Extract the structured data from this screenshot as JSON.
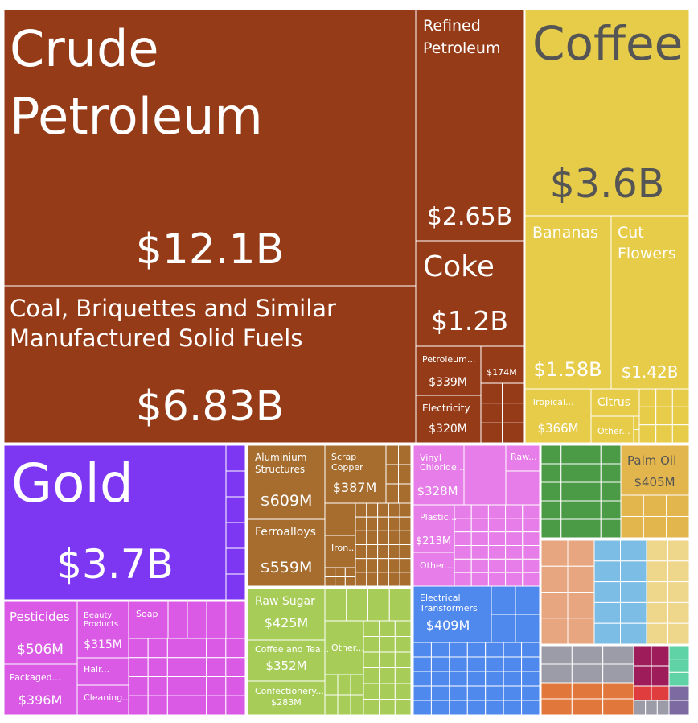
{
  "chart_data": {
    "type": "treemap",
    "colors": {
      "mineral": "#963b18",
      "vegetable": "#e7cc4a",
      "gold": "#7d37f2",
      "chemicals": "#da5ae5",
      "metals": "#a66d2f",
      "foodstuffs": "#a7cc58",
      "plastics": "#e77de9",
      "machines": "#5089ee",
      "animal": "#4b9a46",
      "animal_veg_byproducts": "#e3b54d",
      "paper": "#e7a680",
      "wood": "#7cbde6",
      "textiles": "#eed68a",
      "stone": "#9b9ca7",
      "transport": "#e1773b",
      "instruments": "#9e1c5a",
      "misc": "#5fd2a6",
      "weapons": "#e03e3e",
      "mechanical": "#7c6aa1"
    },
    "items": [
      {
        "name": "Crude Petroleum",
        "value_label": "$12.1B",
        "value_usd_bn": 12.1
      },
      {
        "name": "Coal, Briquettes and Similar Manufactured Solid Fuels",
        "value_label": "$6.83B",
        "value_usd_bn": 6.83
      },
      {
        "name": "Refined Petroleum",
        "value_label": "$2.65B",
        "value_usd_bn": 2.65
      },
      {
        "name": "Coke",
        "value_label": "$1.2B",
        "value_usd_bn": 1.2
      },
      {
        "name": "Petroleum...",
        "value_label": "$339M",
        "value_usd_bn": 0.339
      },
      {
        "name": "",
        "value_label": "$174M",
        "value_usd_bn": 0.174
      },
      {
        "name": "Electricity",
        "value_label": "$320M",
        "value_usd_bn": 0.32
      },
      {
        "name": "Coffee",
        "value_label": "$3.6B",
        "value_usd_bn": 3.6
      },
      {
        "name": "Bananas",
        "value_label": "$1.58B",
        "value_usd_bn": 1.58
      },
      {
        "name": "Cut Flowers",
        "value_label": "$1.42B",
        "value_usd_bn": 1.42
      },
      {
        "name": "Tropical...",
        "value_label": "$366M",
        "value_usd_bn": 0.366
      },
      {
        "name": "Citrus",
        "value_label": "",
        "value_usd_bn": null
      },
      {
        "name": "Other...",
        "value_label": "",
        "value_usd_bn": null
      },
      {
        "name": "Gold",
        "value_label": "$3.7B",
        "value_usd_bn": 3.7
      },
      {
        "name": "Pesticides",
        "value_label": "$506M",
        "value_usd_bn": 0.506
      },
      {
        "name": "Beauty Products",
        "value_label": "$315M",
        "value_usd_bn": 0.315
      },
      {
        "name": "Soap",
        "value_label": "",
        "value_usd_bn": null
      },
      {
        "name": "Hair...",
        "value_label": "",
        "value_usd_bn": null
      },
      {
        "name": "Packaged...",
        "value_label": "$396M",
        "value_usd_bn": 0.396
      },
      {
        "name": "Cleaning...",
        "value_label": "",
        "value_usd_bn": null
      },
      {
        "name": "Aluminium Structures",
        "value_label": "$609M",
        "value_usd_bn": 0.609
      },
      {
        "name": "Scrap Copper",
        "value_label": "$387M",
        "value_usd_bn": 0.387
      },
      {
        "name": "Ferroalloys",
        "value_label": "$559M",
        "value_usd_bn": 0.559
      },
      {
        "name": "Iron...",
        "value_label": "",
        "value_usd_bn": null
      },
      {
        "name": "Raw Sugar",
        "value_label": "$425M",
        "value_usd_bn": 0.425
      },
      {
        "name": "Coffee and Tea...",
        "value_label": "$352M",
        "value_usd_bn": 0.352
      },
      {
        "name": "Other...",
        "value_label": "",
        "value_usd_bn": null
      },
      {
        "name": "Confectionery...",
        "value_label": "$283M",
        "value_usd_bn": 0.283
      },
      {
        "name": "Vinyl Chloride...",
        "value_label": "$328M",
        "value_usd_bn": 0.328
      },
      {
        "name": "Raw...",
        "value_label": "",
        "value_usd_bn": null
      },
      {
        "name": "Plastic...",
        "value_label": "$213M",
        "value_usd_bn": 0.213
      },
      {
        "name": "Other...",
        "value_label": "",
        "value_usd_bn": null
      },
      {
        "name": "Electrical Transformers",
        "value_label": "$409M",
        "value_usd_bn": 0.409
      },
      {
        "name": "Palm Oil",
        "value_label": "$405M",
        "value_usd_bn": 0.405
      }
    ]
  }
}
